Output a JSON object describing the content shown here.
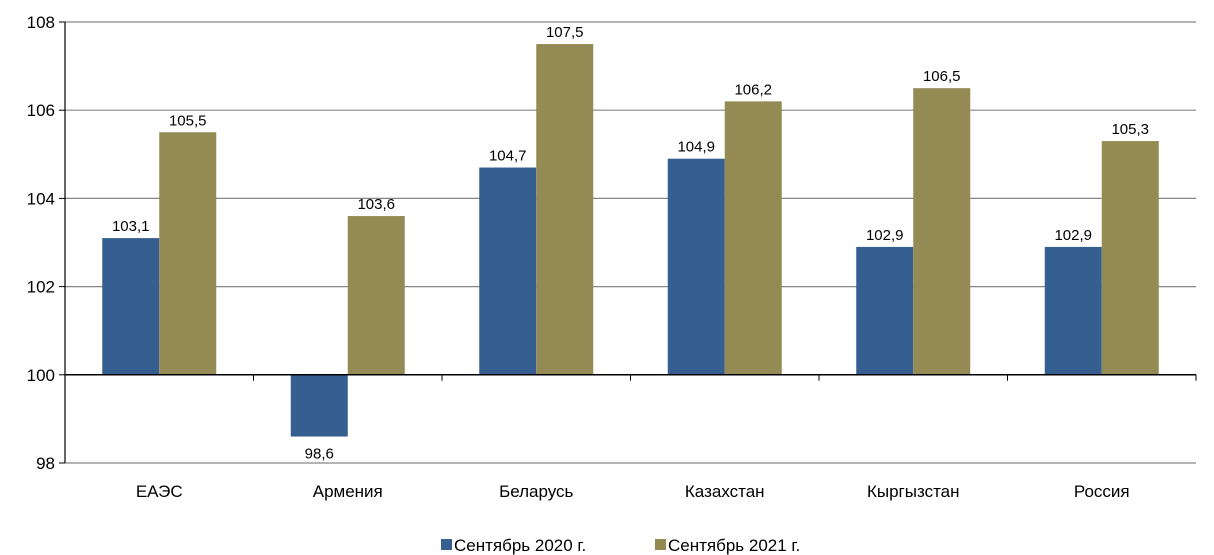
{
  "chart_data": {
    "type": "bar",
    "categories": [
      "ЕАЭС",
      "Армения",
      "Беларусь",
      "Казахстан",
      "Кыргызстан",
      "Россия"
    ],
    "series": [
      {
        "name": "Сентябрь 2020 г.",
        "color": "#355E91",
        "values": [
          103.1,
          98.6,
          104.7,
          104.9,
          102.9,
          102.9
        ],
        "labels": [
          "103,1",
          "98,6",
          "104,7",
          "104,9",
          "102,9",
          "102,9"
        ]
      },
      {
        "name": "Сентябрь 2021 г.",
        "color": "#948A54",
        "values": [
          105.5,
          103.6,
          107.5,
          106.2,
          106.5,
          105.3
        ],
        "labels": [
          "105,5",
          "103,6",
          "107,5",
          "106,2",
          "106,5",
          "105,3"
        ]
      }
    ],
    "ylim": [
      98,
      108
    ],
    "yticks": [
      98,
      100,
      102,
      104,
      106,
      108
    ],
    "baseline": 100,
    "grid": true,
    "legend_position": "bottom"
  }
}
